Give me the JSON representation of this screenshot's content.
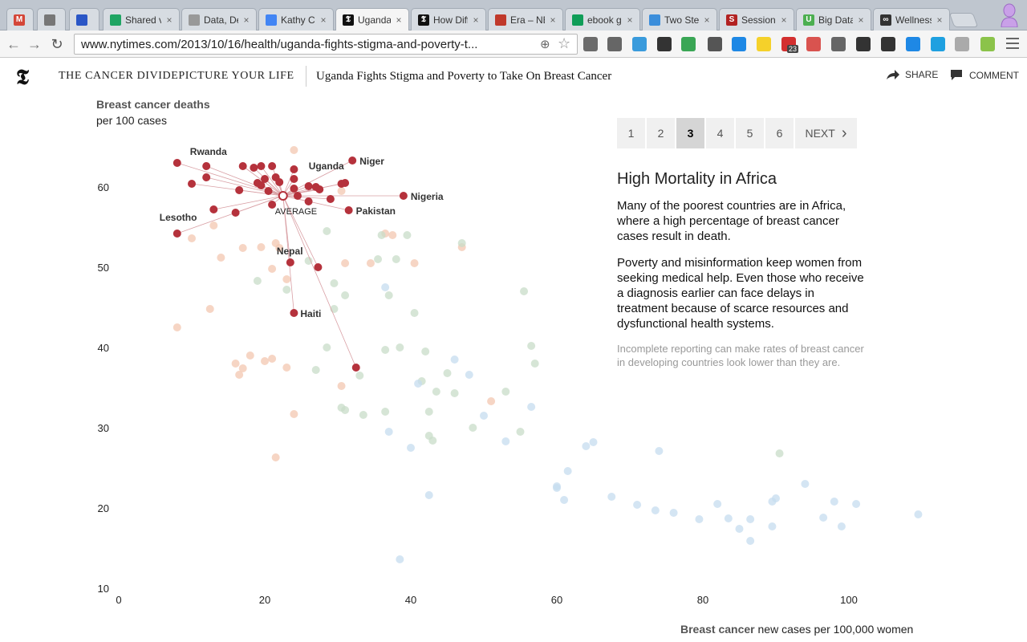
{
  "browser": {
    "tabs": [
      {
        "title": "",
        "icon": "gmail-icon",
        "color": "#d44638",
        "glyph": "M"
      },
      {
        "title": "",
        "icon": "extension-icon",
        "color": "#777",
        "glyph": ""
      },
      {
        "title": "",
        "icon": "circle-app-icon",
        "color": "#2a56c6",
        "glyph": ""
      },
      {
        "title": "Shared v",
        "icon": "drive-icon",
        "color": "#1fa463",
        "glyph": ""
      },
      {
        "title": "Data, De",
        "icon": "document-icon",
        "color": "#999",
        "glyph": ""
      },
      {
        "title": "Kathy Cl",
        "icon": "docs-icon",
        "color": "#4285f4",
        "glyph": ""
      },
      {
        "title": "Uganda",
        "icon": "nyt-icon",
        "color": "#111",
        "glyph": "𝕿"
      },
      {
        "title": "How Diff",
        "icon": "nyt-icon",
        "color": "#111",
        "glyph": "𝕿"
      },
      {
        "title": "Era – NE",
        "icon": "globe-icon",
        "color": "#c0392b",
        "glyph": ""
      },
      {
        "title": "ebook g",
        "icon": "sheets-icon",
        "color": "#0f9d58",
        "glyph": ""
      },
      {
        "title": "Two Ste",
        "icon": "app-icon",
        "color": "#3b8edb",
        "glyph": ""
      },
      {
        "title": "Session",
        "icon": "s-icon",
        "color": "#b22222",
        "glyph": "S"
      },
      {
        "title": "Big Data",
        "icon": "u-icon",
        "color": "#4caf50",
        "glyph": "U"
      },
      {
        "title": "Wellness",
        "icon": "wellness-icon",
        "color": "#333",
        "glyph": "∞"
      }
    ],
    "active_tab": 6,
    "url": "www.nytimes.com/2013/10/16/health/uganda-fights-stigma-and-poverty-t...",
    "ext_badge": "23"
  },
  "header": {
    "logo": "𝕿",
    "series": "THE CANCER DIVIDEPICTURE YOUR LIFE",
    "headline": "Uganda Fights Stigma and Poverty to Take On Breast Cancer",
    "share": "SHARE",
    "comment": "COMMENT"
  },
  "panel": {
    "pages": [
      "1",
      "2",
      "3",
      "4",
      "5",
      "6"
    ],
    "current_page": "3",
    "next": "NEXT",
    "title": "High Mortality in Africa",
    "paragraphs": [
      "Many of the poorest countries are in Africa, where a high percentage of breast cancer cases result in death.",
      "Poverty and misinformation keep women from seeking medical help. Even those who receive a diagnosis earlier can face delays in treatment because of scarce resources and dysfunctional health systems."
    ],
    "note": "Incomplete reporting can make rates of breast cancer in developing countries look lower than they are."
  },
  "chart_data": {
    "type": "scatter",
    "ylabel_bold": "Breast cancer deaths",
    "ylabel_rest": "per 100 cases",
    "xlabel_bold": "Breast cancer",
    "xlabel_rest": "new cases per 100,000 women",
    "xlim": [
      0,
      110
    ],
    "ylim": [
      10,
      66
    ],
    "xticks": [
      0,
      20,
      40,
      60,
      80,
      100
    ],
    "yticks": [
      10,
      20,
      30,
      40,
      50,
      60
    ],
    "colors": {
      "highlight": "#b5323c",
      "orange": "#f3c7b0",
      "green": "#c8dcc8",
      "blue": "#c6dcef"
    },
    "average": {
      "x": 22.5,
      "y": 58.9,
      "label": "AVERAGE"
    },
    "highlighted": [
      {
        "x": 8,
        "y": 63,
        "label": "Rwanda"
      },
      {
        "x": 12,
        "y": 62.6
      },
      {
        "x": 12,
        "y": 61.2
      },
      {
        "x": 10,
        "y": 60.4
      },
      {
        "x": 17,
        "y": 62.6
      },
      {
        "x": 18.5,
        "y": 62.4
      },
      {
        "x": 19.5,
        "y": 62.6
      },
      {
        "x": 21,
        "y": 62.6
      },
      {
        "x": 20,
        "y": 61
      },
      {
        "x": 21.5,
        "y": 61.2
      },
      {
        "x": 24,
        "y": 62.2
      },
      {
        "x": 24,
        "y": 61
      },
      {
        "x": 19,
        "y": 60.5
      },
      {
        "x": 19.5,
        "y": 60.2
      },
      {
        "x": 22,
        "y": 60.6
      },
      {
        "x": 16.5,
        "y": 59.6
      },
      {
        "x": 20.5,
        "y": 59.5
      },
      {
        "x": 24,
        "y": 59.8
      },
      {
        "x": 26,
        "y": 60.1
      },
      {
        "x": 27.5,
        "y": 59.7
      },
      {
        "x": 24.5,
        "y": 58.9
      },
      {
        "x": 26,
        "y": 58.2
      },
      {
        "x": 29,
        "y": 58.5
      },
      {
        "x": 30.5,
        "y": 60.4
      },
      {
        "x": 31,
        "y": 60.5
      },
      {
        "x": 21,
        "y": 57.8
      },
      {
        "x": 13,
        "y": 57.2
      },
      {
        "x": 16,
        "y": 56.8
      },
      {
        "x": 8,
        "y": 54.2,
        "label": "Lesotho"
      },
      {
        "x": 32,
        "y": 63.3,
        "label": "Niger"
      },
      {
        "x": 27,
        "y": 60,
        "label": "Uganda"
      },
      {
        "x": 39,
        "y": 58.9,
        "label": "Nigeria"
      },
      {
        "x": 31.5,
        "y": 57.1,
        "label": "Pakistan"
      },
      {
        "x": 23.5,
        "y": 50.6,
        "label": "Nepal"
      },
      {
        "x": 27.3,
        "y": 50
      },
      {
        "x": 24,
        "y": 44.3,
        "label": "Haiti"
      },
      {
        "x": 32.5,
        "y": 37.5
      }
    ],
    "faded_orange": [
      [
        24,
        64.6
      ],
      [
        13,
        55.2
      ],
      [
        10,
        53.6
      ],
      [
        17,
        52.4
      ],
      [
        19.5,
        52.5
      ],
      [
        21,
        49.8
      ],
      [
        22,
        52.4
      ],
      [
        23,
        48.5
      ],
      [
        14,
        51.2
      ],
      [
        21.5,
        53
      ],
      [
        31,
        50.5
      ],
      [
        34.5,
        50.5
      ],
      [
        40.5,
        50.5
      ],
      [
        47,
        52.5
      ],
      [
        36.5,
        54.2
      ],
      [
        37.5,
        54
      ],
      [
        12.5,
        44.8
      ],
      [
        8,
        42.5
      ],
      [
        18,
        39
      ],
      [
        20,
        38.3
      ],
      [
        21,
        38.6
      ],
      [
        16,
        38
      ],
      [
        17,
        37.4
      ],
      [
        16.5,
        36.6
      ],
      [
        23,
        37.5
      ],
      [
        30.5,
        35.2
      ],
      [
        24,
        31.7
      ],
      [
        21.5,
        26.3
      ],
      [
        51,
        33.3
      ],
      [
        30.5,
        59.5
      ]
    ],
    "faded_green": [
      [
        28.5,
        54.5
      ],
      [
        23,
        47.2
      ],
      [
        19,
        48.3
      ],
      [
        26,
        50.8
      ],
      [
        29.5,
        48
      ],
      [
        31,
        46.5
      ],
      [
        29.5,
        44.8
      ],
      [
        35.5,
        51
      ],
      [
        38,
        51
      ],
      [
        36,
        54
      ],
      [
        39.5,
        54
      ],
      [
        47,
        53
      ],
      [
        55.5,
        47
      ],
      [
        37,
        46.5
      ],
      [
        40.5,
        44.3
      ],
      [
        28.5,
        40
      ],
      [
        36.5,
        39.7
      ],
      [
        38.5,
        40
      ],
      [
        42,
        39.5
      ],
      [
        56.5,
        40.2
      ],
      [
        57,
        38
      ],
      [
        27,
        37.2
      ],
      [
        45,
        36.8
      ],
      [
        41.5,
        35.8
      ],
      [
        43.5,
        34.5
      ],
      [
        46,
        34.3
      ],
      [
        53,
        34.5
      ],
      [
        31,
        32.2
      ],
      [
        33.5,
        31.6
      ],
      [
        36.5,
        32
      ],
      [
        42.5,
        32
      ],
      [
        30.5,
        32.5
      ],
      [
        48.5,
        30
      ],
      [
        42.5,
        29
      ],
      [
        43,
        28.4
      ],
      [
        55,
        29.5
      ],
      [
        90.5,
        26.8
      ],
      [
        33,
        36.5
      ]
    ],
    "faded_blue": [
      [
        36.5,
        47.5
      ],
      [
        41,
        35.5
      ],
      [
        46,
        38.5
      ],
      [
        48,
        36.6
      ],
      [
        50,
        31.5
      ],
      [
        56.5,
        32.6
      ],
      [
        37,
        29.5
      ],
      [
        40,
        27.5
      ],
      [
        53,
        28.3
      ],
      [
        61.5,
        24.6
      ],
      [
        64,
        27.7
      ],
      [
        65,
        28.2
      ],
      [
        74,
        27.1
      ],
      [
        60,
        22.7
      ],
      [
        61,
        21
      ],
      [
        67.5,
        21.4
      ],
      [
        71,
        20.4
      ],
      [
        73.5,
        19.7
      ],
      [
        76,
        19.4
      ],
      [
        79.5,
        18.6
      ],
      [
        82,
        20.5
      ],
      [
        83.5,
        18.7
      ],
      [
        85,
        17.4
      ],
      [
        86.5,
        18.6
      ],
      [
        86.5,
        15.9
      ],
      [
        89.5,
        20.8
      ],
      [
        90,
        21.2
      ],
      [
        89.5,
        17.7
      ],
      [
        94,
        23
      ],
      [
        96.5,
        18.8
      ],
      [
        98,
        20.8
      ],
      [
        99,
        17.7
      ],
      [
        101,
        20.5
      ],
      [
        109.5,
        19.2
      ],
      [
        42.5,
        21.6
      ],
      [
        38.5,
        13.6
      ],
      [
        60,
        22.5
      ]
    ]
  }
}
